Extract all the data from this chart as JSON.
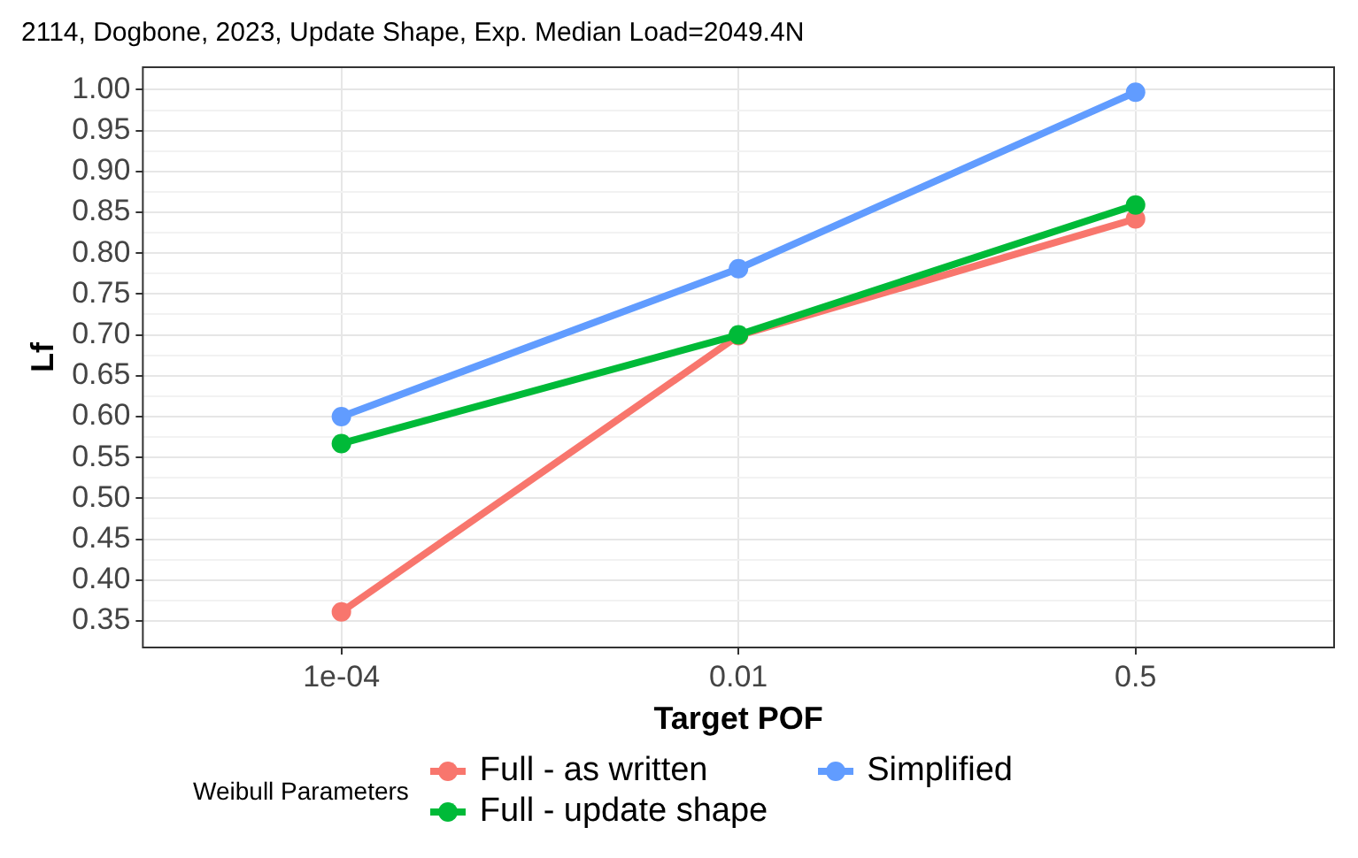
{
  "chart_data": {
    "type": "line",
    "title": "2114, Dogbone, 2023, Update Shape, Exp. Median Load=2049.4N",
    "xlabel": "Target POF",
    "ylabel": "Lf",
    "legend_title": "Weibull Parameters",
    "categories": [
      "1e-04",
      "0.01",
      "0.5"
    ],
    "series": [
      {
        "name": "Full - as written",
        "color": "#f8766d",
        "values": [
          0.361,
          0.699,
          0.842
        ]
      },
      {
        "name": "Full - update shape",
        "color": "#00ba38",
        "values": [
          0.567,
          0.7,
          0.859
        ]
      },
      {
        "name": "Simplified",
        "color": "#619cff",
        "values": [
          0.6,
          0.781,
          0.997
        ]
      }
    ],
    "ylim": [
      0.3175,
      1.0275
    ],
    "yticks": [
      {
        "value": 0.35,
        "label": "0.35"
      },
      {
        "value": 0.375,
        "label": null
      },
      {
        "value": 0.4,
        "label": "0.40"
      },
      {
        "value": 0.425,
        "label": null
      },
      {
        "value": 0.45,
        "label": "0.45"
      },
      {
        "value": 0.475,
        "label": null
      },
      {
        "value": 0.5,
        "label": "0.50"
      },
      {
        "value": 0.525,
        "label": null
      },
      {
        "value": 0.55,
        "label": "0.55"
      },
      {
        "value": 0.575,
        "label": null
      },
      {
        "value": 0.6,
        "label": "0.60"
      },
      {
        "value": 0.625,
        "label": null
      },
      {
        "value": 0.65,
        "label": "0.65"
      },
      {
        "value": 0.675,
        "label": null
      },
      {
        "value": 0.7,
        "label": "0.70"
      },
      {
        "value": 0.725,
        "label": null
      },
      {
        "value": 0.75,
        "label": "0.75"
      },
      {
        "value": 0.775,
        "label": null
      },
      {
        "value": 0.8,
        "label": "0.80"
      },
      {
        "value": 0.825,
        "label": null
      },
      {
        "value": 0.85,
        "label": "0.85"
      },
      {
        "value": 0.875,
        "label": null
      },
      {
        "value": 0.9,
        "label": "0.90"
      },
      {
        "value": 0.925,
        "label": null
      },
      {
        "value": 0.95,
        "label": "0.95"
      },
      {
        "value": 0.975,
        "label": null
      },
      {
        "value": 1,
        "label": "1.00"
      }
    ],
    "grid": true,
    "legend": "bottom",
    "marker": "circle",
    "line_style": "solid"
  }
}
